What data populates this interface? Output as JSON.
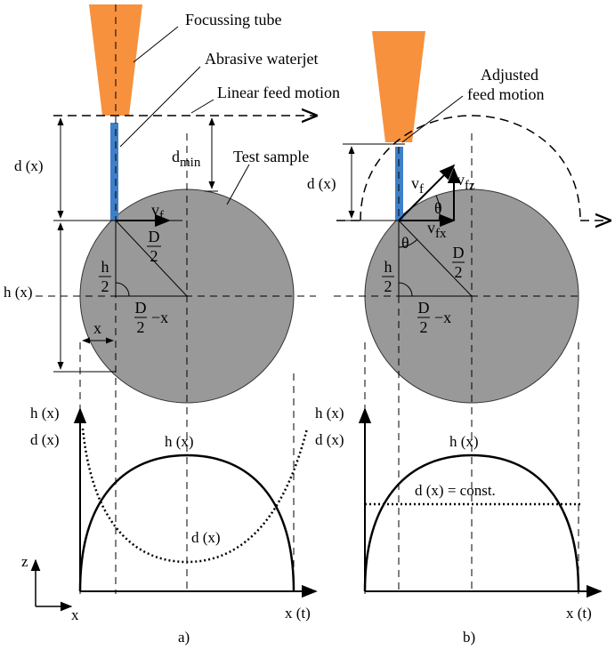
{
  "labels": {
    "focussing_tube": "Focussing tube",
    "abrasive_waterjet": "Abrasive waterjet",
    "linear_feed": "Linear feed motion",
    "adjusted_feed_1": "Adjusted",
    "adjusted_feed_2": "feed motion",
    "test_sample": "Test sample"
  },
  "panel_a": {
    "d": "d (x)",
    "dmin_base": "d",
    "dmin_sub": "min",
    "vf_base": "v",
    "vf_sub": "f",
    "D2_num": "D",
    "D2_den": "2",
    "h2_num": "h",
    "h2_den": "2",
    "h": "h (x)",
    "x": "x",
    "D2x_num": "D",
    "D2x_den": "2",
    "D2x_rest": "−x",
    "plot_axis_h": "h (x)",
    "plot_axis_d": "d (x)",
    "curve_h": "h (x)",
    "curve_d": "d (x)",
    "x_label": "x (t)",
    "caption": "a)"
  },
  "panel_b": {
    "d": "d (x)",
    "vf_base": "v",
    "vf_sub": "f",
    "vfz_base": "v",
    "vfz_sub": "fz",
    "vfx_base": "v",
    "vfx_sub": "fx",
    "theta_1": "θ",
    "theta_2": "θ",
    "D2_num": "D",
    "D2_den": "2",
    "h2_num": "h",
    "h2_den": "2",
    "D2x_num": "D",
    "D2x_den": "2",
    "D2x_rest": "−x",
    "plot_axis_h": "h (x)",
    "plot_axis_d": "d (x)",
    "curve_h": "h (x)",
    "const": "d (x) = const.",
    "x_label": "x (t)",
    "caption": "b)"
  },
  "axes": {
    "z": "z",
    "x": "x"
  }
}
